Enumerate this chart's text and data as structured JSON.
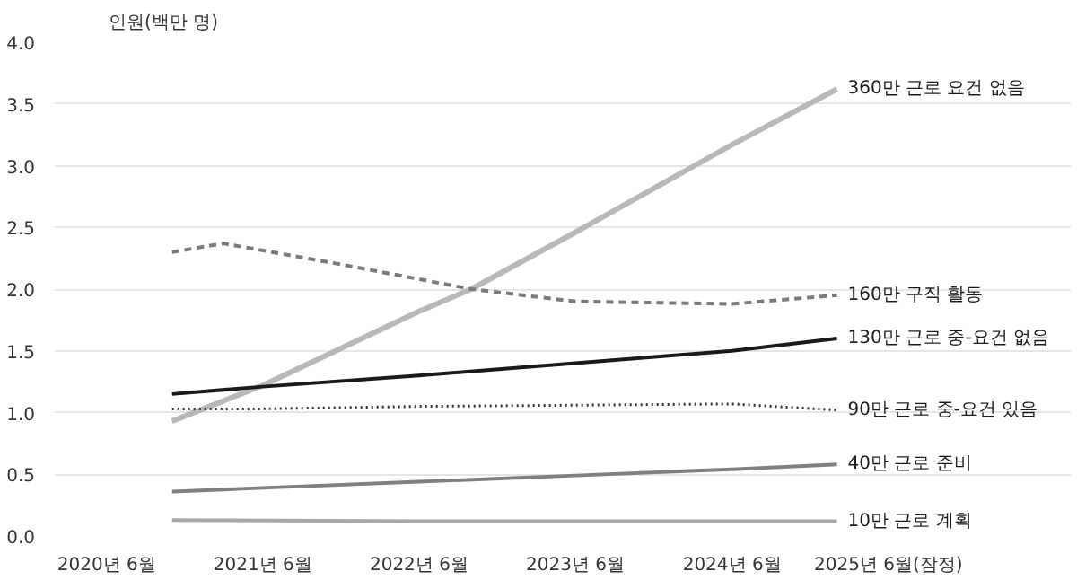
{
  "chart_data": {
    "type": "line",
    "ylabel": "인원(백만 명)",
    "xlim": [
      "2020-02",
      "2026-08"
    ],
    "xticks": [
      {
        "value": "2020-06",
        "label": "2020년 6월"
      },
      {
        "value": "2021-06",
        "label": "2021년 6월"
      },
      {
        "value": "2022-06",
        "label": "2022년 6월"
      },
      {
        "value": "2023-06",
        "label": "2023년 6월"
      },
      {
        "value": "2024-06",
        "label": "2024년 6월"
      },
      {
        "value": "2025-06",
        "label": "2025년 6월(잠정)"
      }
    ],
    "ylim": [
      0,
      4
    ],
    "yticks": [
      {
        "value": 0,
        "label": "0.0"
      },
      {
        "value": 0.5,
        "label": "0.5"
      },
      {
        "value": 1,
        "label": "1.0"
      },
      {
        "value": 1.5,
        "label": "1.5"
      },
      {
        "value": 2,
        "label": "2.0"
      },
      {
        "value": 2.5,
        "label": "2.5"
      },
      {
        "value": 3,
        "label": "3.0"
      },
      {
        "value": 3.5,
        "label": "3.5"
      },
      {
        "value": 4,
        "label": "4.0"
      }
    ],
    "grid": "y",
    "marker": "none",
    "series": [
      {
        "name": "360만 근로 요건 없음",
        "color": "#b8b8b8",
        "line_style": "solid",
        "x": [
          "2020-11",
          "2021-06",
          "2022-06",
          "2022-10",
          "2023-06",
          "2024-06",
          "2025-02"
        ],
        "values": [
          0.93,
          1.22,
          1.82,
          2.0,
          2.46,
          3.17,
          3.62
        ]
      },
      {
        "name": "160만 구직 활동",
        "color": "#7a7a7a",
        "line_style": "dashed",
        "x": [
          "2020-11",
          "2021-03",
          "2021-12",
          "2022-10",
          "2023-06",
          "2024-06",
          "2025-02"
        ],
        "values": [
          2.3,
          2.37,
          2.2,
          2.0,
          1.9,
          1.88,
          1.95
        ]
      },
      {
        "name": "130만 근로 중-요건 없음",
        "color": "#1a1a1a",
        "line_style": "solid",
        "x": [
          "2020-11",
          "2021-06",
          "2022-06",
          "2023-06",
          "2024-06",
          "2025-02"
        ],
        "values": [
          1.15,
          1.21,
          1.3,
          1.4,
          1.5,
          1.6
        ]
      },
      {
        "name": "90만 근로 중-요건 있음",
        "color": "#333333",
        "line_style": "dotted",
        "x": [
          "2020-11",
          "2021-06",
          "2022-06",
          "2023-06",
          "2024-06",
          "2025-02"
        ],
        "values": [
          1.03,
          1.03,
          1.05,
          1.06,
          1.07,
          1.02
        ]
      },
      {
        "name": "40만 근로 준비",
        "color": "#808080",
        "line_style": "solid",
        "x": [
          "2020-11",
          "2021-06",
          "2022-06",
          "2023-06",
          "2024-06",
          "2025-02"
        ],
        "values": [
          0.36,
          0.39,
          0.44,
          0.49,
          0.54,
          0.58
        ]
      },
      {
        "name": "10만 근로 계획",
        "color": "#a8a8a8",
        "line_style": "solid",
        "x": [
          "2020-11",
          "2022-06",
          "2025-02"
        ],
        "values": [
          0.13,
          0.12,
          0.12
        ]
      }
    ]
  }
}
